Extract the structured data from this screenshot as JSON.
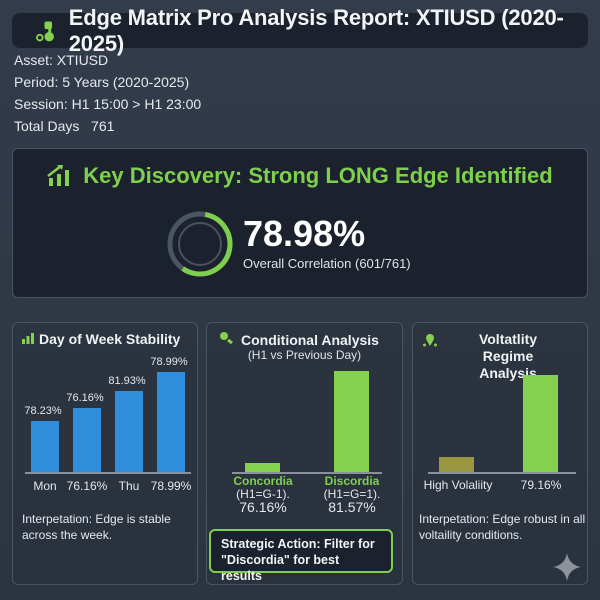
{
  "header": {
    "title": "Edge Matrix Pro Analysis Report: XTIUSD (2020-2025)",
    "icon": "music-note-icon"
  },
  "info": {
    "asset": "Asset: XTIUSD",
    "period": "Period: 5 Years (2020-2025)",
    "session": "Session: H1 15:00 > H1 23:00",
    "total_days": "Total Days   761"
  },
  "key": {
    "title": "Key Discovery: Strong LONG Edge Identified",
    "value": "78.98%",
    "subtitle": "Overall Correlation (601/761)",
    "progress": 0.7898
  },
  "colors": {
    "accent": "#84d14d",
    "blue": "#2f8fdc",
    "olive": "#9b9640",
    "bg": "#2f3847"
  },
  "chart_data": [
    {
      "type": "bar",
      "title": "Day of Week Stability",
      "categories": [
        "Mon",
        "76.16%",
        "Thu",
        "78.99%"
      ],
      "values": [
        78.23,
        76.16,
        81.93,
        78.99
      ],
      "value_labels": [
        "78.23%",
        "76.16%",
        "81.93%",
        "78.99%"
      ]
    },
    {
      "type": "bar",
      "title": "Conditional Analysis",
      "subtitle": "(H1 vs Previous Day)",
      "categories": [
        "Concordia",
        "Discordia"
      ],
      "sublabels": [
        "(H1=G-1).",
        "(H1=G=1)."
      ],
      "values": [
        76.16,
        81.57
      ],
      "value_labels": [
        "76.16%",
        "81.57%"
      ]
    },
    {
      "type": "bar",
      "title": "Voltatlity Regime Analysis",
      "categories": [
        "High Volaliity",
        "79.16%"
      ],
      "values": [
        null,
        79.16
      ]
    }
  ],
  "panels": {
    "dow_interp": "Interpetation: Edge is stable across the week.",
    "strategic": "Strategic Action: Filter for \"Discordia\" for best results",
    "vol_interp": "Interpetation: Edge robust in all voltaility conditions."
  }
}
